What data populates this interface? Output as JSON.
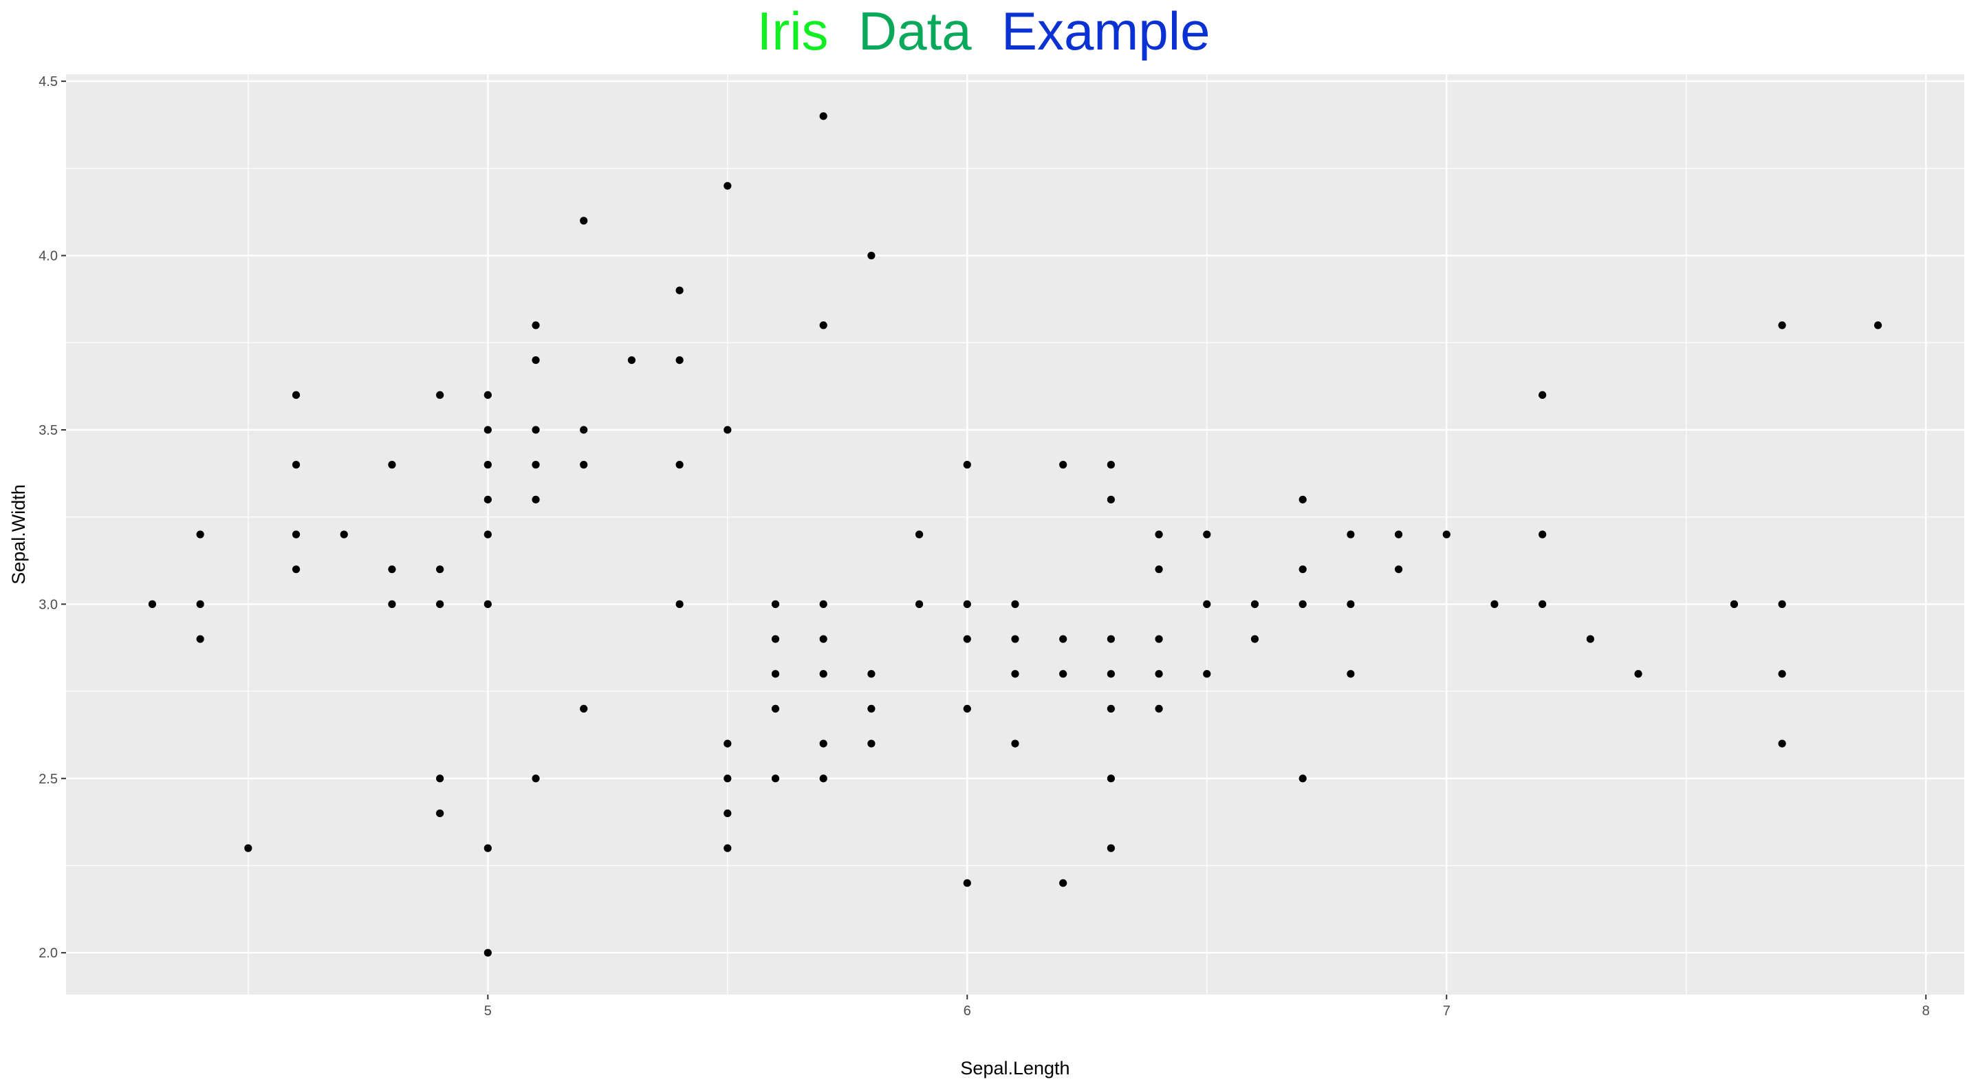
{
  "chart_data": {
    "type": "scatter",
    "title_words": [
      {
        "text": "Iris",
        "color": "#11ee22"
      },
      {
        "text": "Data",
        "color": "#0aa85a"
      },
      {
        "text": "Example",
        "color": "#0a32d2"
      }
    ],
    "xlabel": "Sepal.Length",
    "ylabel": "Sepal.Width",
    "xlim": [
      4.12,
      8.08
    ],
    "ylim": [
      1.88,
      4.52
    ],
    "x_ticks": [
      5,
      6,
      7,
      8
    ],
    "x_tick_labels": [
      "5",
      "6",
      "7",
      "8"
    ],
    "y_ticks": [
      2.0,
      2.5,
      3.0,
      3.5,
      4.0,
      4.5
    ],
    "y_tick_labels": [
      "2.0",
      "2.5",
      "3.0",
      "3.5",
      "4.0",
      "4.5"
    ],
    "grid": true,
    "panel_color": "#ebebeb",
    "point_color": "#000000",
    "points": [
      [
        4.3,
        3.0
      ],
      [
        4.4,
        3.2
      ],
      [
        4.4,
        3.0
      ],
      [
        4.4,
        2.9
      ],
      [
        4.5,
        2.3
      ],
      [
        4.6,
        3.6
      ],
      [
        4.6,
        3.4
      ],
      [
        4.6,
        3.2
      ],
      [
        4.6,
        3.1
      ],
      [
        4.7,
        3.2
      ],
      [
        4.8,
        3.4
      ],
      [
        4.8,
        3.1
      ],
      [
        4.8,
        3.0
      ],
      [
        4.9,
        3.6
      ],
      [
        4.9,
        3.1
      ],
      [
        4.9,
        3.0
      ],
      [
        4.9,
        2.5
      ],
      [
        4.9,
        2.4
      ],
      [
        5.0,
        3.6
      ],
      [
        5.0,
        3.5
      ],
      [
        5.0,
        3.4
      ],
      [
        5.0,
        3.3
      ],
      [
        5.0,
        3.2
      ],
      [
        5.0,
        3.0
      ],
      [
        5.0,
        2.3
      ],
      [
        5.0,
        2.0
      ],
      [
        5.1,
        3.8
      ],
      [
        5.1,
        3.7
      ],
      [
        5.1,
        3.5
      ],
      [
        5.1,
        3.4
      ],
      [
        5.1,
        3.3
      ],
      [
        5.1,
        2.5
      ],
      [
        5.2,
        4.1
      ],
      [
        5.2,
        3.5
      ],
      [
        5.2,
        3.4
      ],
      [
        5.2,
        2.7
      ],
      [
        5.3,
        3.7
      ],
      [
        5.4,
        3.9
      ],
      [
        5.4,
        3.7
      ],
      [
        5.4,
        3.4
      ],
      [
        5.4,
        3.0
      ],
      [
        5.5,
        4.2
      ],
      [
        5.5,
        3.5
      ],
      [
        5.5,
        2.6
      ],
      [
        5.5,
        2.5
      ],
      [
        5.5,
        2.4
      ],
      [
        5.5,
        2.3
      ],
      [
        5.6,
        3.0
      ],
      [
        5.6,
        2.9
      ],
      [
        5.6,
        2.8
      ],
      [
        5.6,
        2.7
      ],
      [
        5.6,
        2.5
      ],
      [
        5.7,
        4.4
      ],
      [
        5.7,
        3.8
      ],
      [
        5.7,
        3.0
      ],
      [
        5.7,
        2.9
      ],
      [
        5.7,
        2.8
      ],
      [
        5.7,
        2.6
      ],
      [
        5.7,
        2.5
      ],
      [
        5.8,
        4.0
      ],
      [
        5.8,
        2.8
      ],
      [
        5.8,
        2.7
      ],
      [
        5.8,
        2.6
      ],
      [
        5.9,
        3.2
      ],
      [
        5.9,
        3.0
      ],
      [
        6.0,
        3.4
      ],
      [
        6.0,
        3.0
      ],
      [
        6.0,
        2.9
      ],
      [
        6.0,
        2.7
      ],
      [
        6.0,
        2.2
      ],
      [
        6.1,
        3.0
      ],
      [
        6.1,
        2.9
      ],
      [
        6.1,
        2.8
      ],
      [
        6.1,
        2.6
      ],
      [
        6.2,
        3.4
      ],
      [
        6.2,
        2.9
      ],
      [
        6.2,
        2.8
      ],
      [
        6.2,
        2.2
      ],
      [
        6.3,
        3.4
      ],
      [
        6.3,
        3.3
      ],
      [
        6.3,
        2.9
      ],
      [
        6.3,
        2.8
      ],
      [
        6.3,
        2.7
      ],
      [
        6.3,
        2.5
      ],
      [
        6.3,
        2.3
      ],
      [
        6.4,
        3.2
      ],
      [
        6.4,
        3.1
      ],
      [
        6.4,
        2.9
      ],
      [
        6.4,
        2.8
      ],
      [
        6.4,
        2.7
      ],
      [
        6.5,
        3.2
      ],
      [
        6.5,
        3.0
      ],
      [
        6.5,
        2.8
      ],
      [
        6.6,
        3.0
      ],
      [
        6.6,
        2.9
      ],
      [
        6.7,
        3.3
      ],
      [
        6.7,
        3.1
      ],
      [
        6.7,
        3.0
      ],
      [
        6.7,
        2.5
      ],
      [
        6.8,
        3.2
      ],
      [
        6.8,
        3.0
      ],
      [
        6.8,
        2.8
      ],
      [
        6.9,
        3.2
      ],
      [
        6.9,
        3.1
      ],
      [
        7.0,
        3.2
      ],
      [
        7.1,
        3.0
      ],
      [
        7.2,
        3.6
      ],
      [
        7.2,
        3.2
      ],
      [
        7.2,
        3.0
      ],
      [
        7.3,
        2.9
      ],
      [
        7.4,
        2.8
      ],
      [
        7.6,
        3.0
      ],
      [
        7.7,
        3.8
      ],
      [
        7.7,
        3.0
      ],
      [
        7.7,
        2.8
      ],
      [
        7.7,
        2.6
      ],
      [
        7.9,
        3.8
      ]
    ]
  }
}
